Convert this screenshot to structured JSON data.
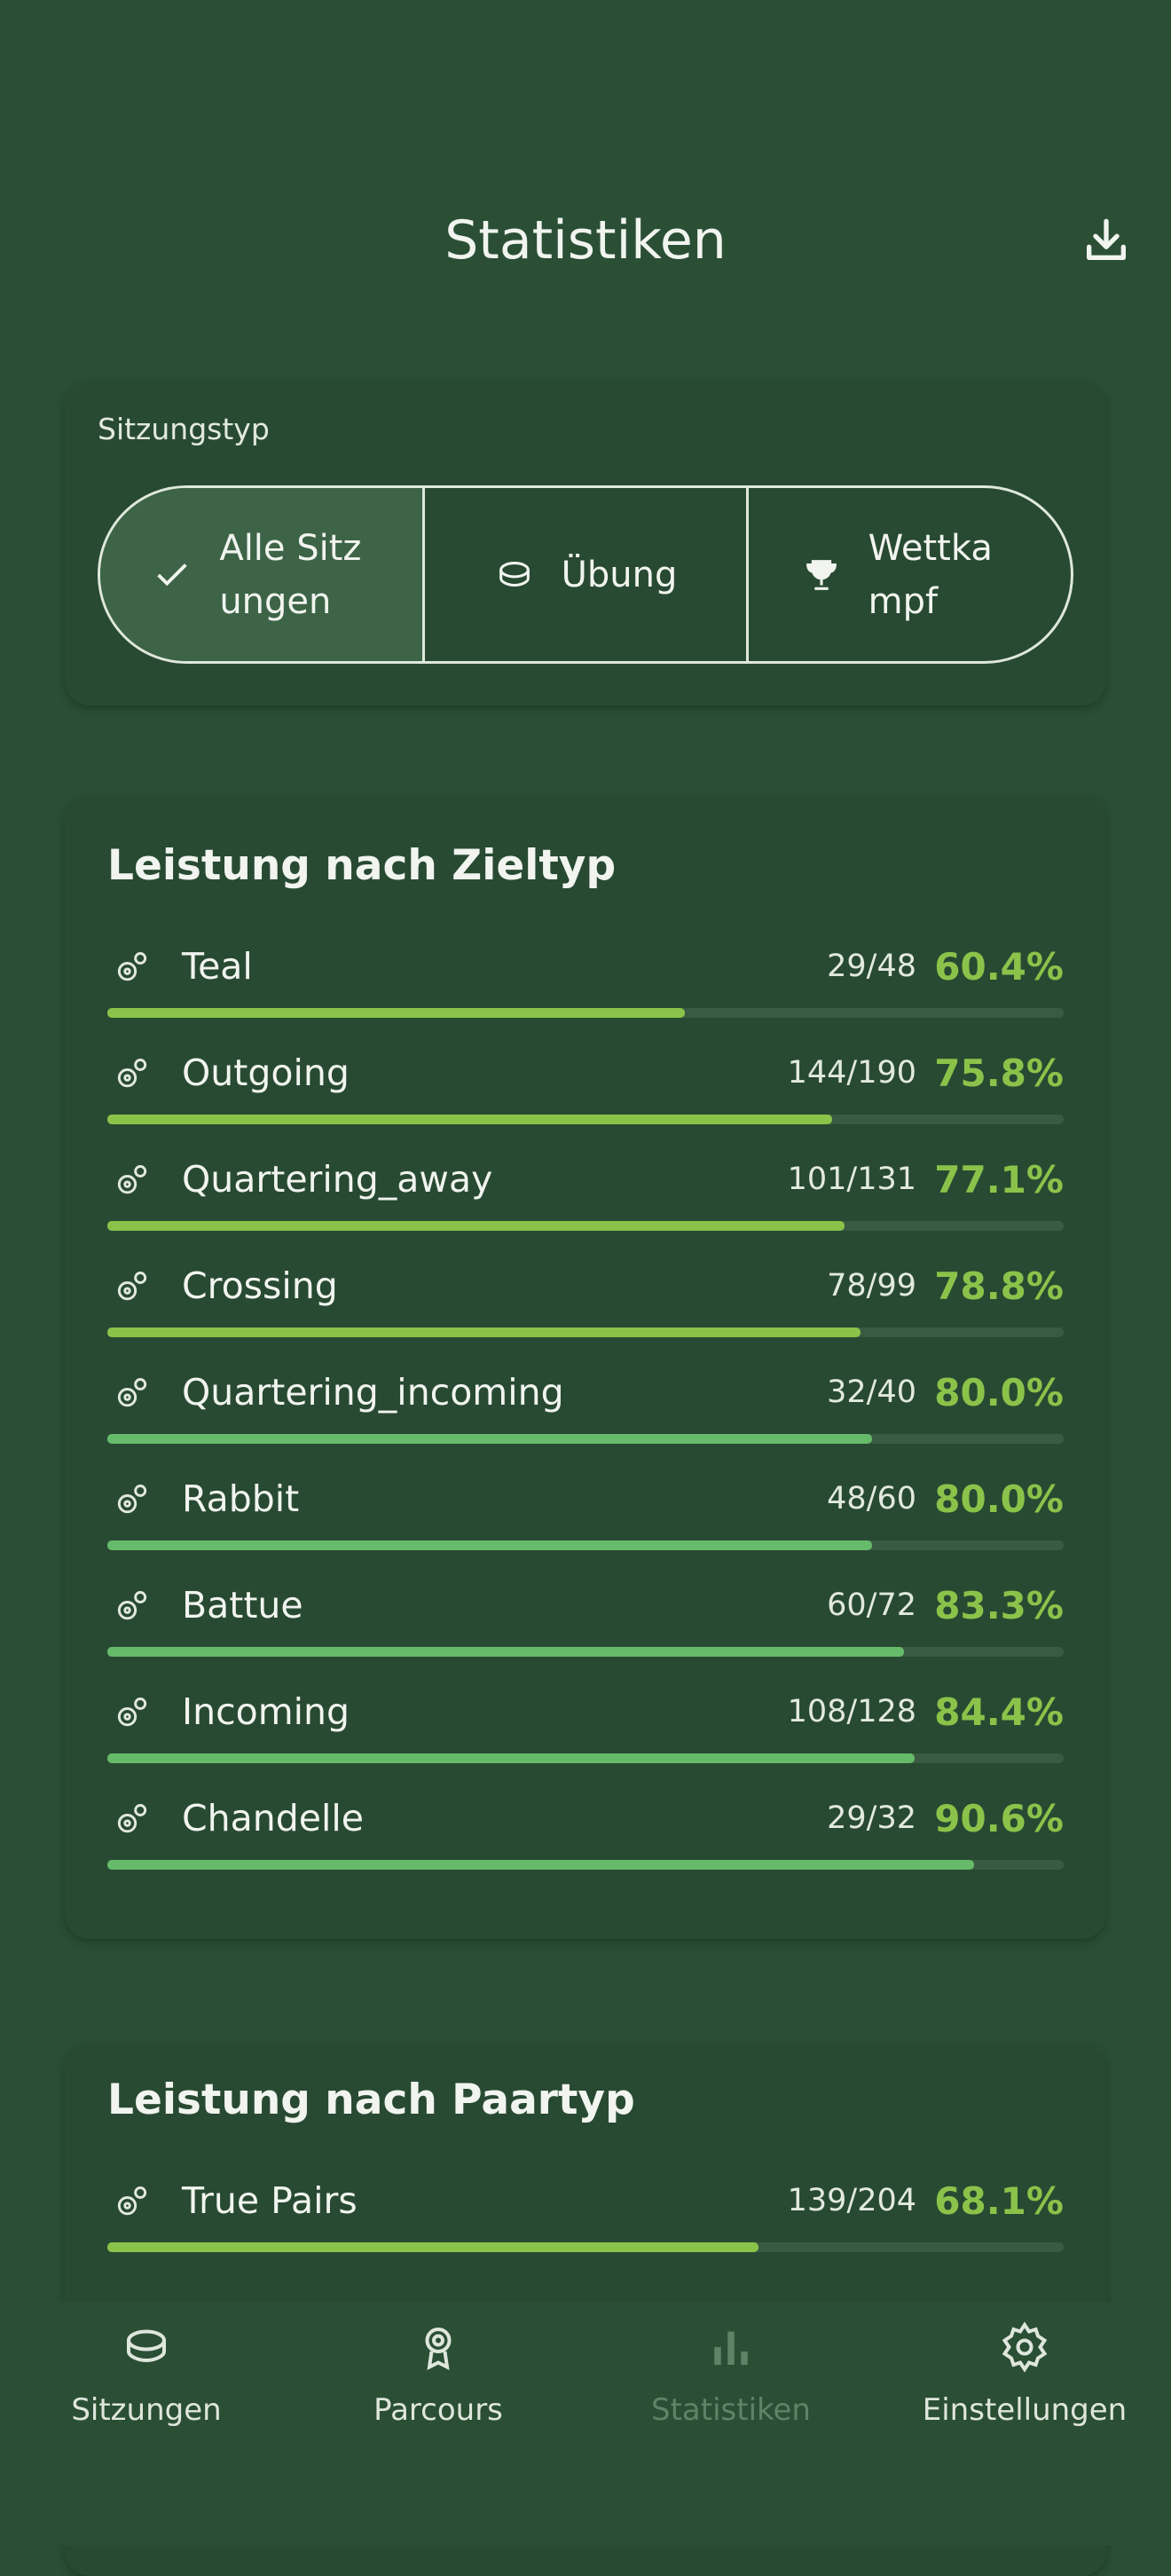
{
  "header": {
    "title": "Statistiken"
  },
  "session_filter": {
    "label": "Sitzungstyp",
    "options": [
      "Alle Sitzungen",
      "Übung",
      "Wettkampf"
    ],
    "selected": 0
  },
  "sections": [
    {
      "title": "Leistung nach Zieltyp",
      "rows": [
        {
          "label": "Teal",
          "score": "29/48",
          "rate": {
            "value": 60.4,
            "label": "60.4%"
          },
          "color": "#8bc34a"
        },
        {
          "label": "Outgoing",
          "score": "144/190",
          "rate": {
            "value": 75.8,
            "label": "75.8%"
          },
          "color": "#8bc34a"
        },
        {
          "label": "Quartering_away",
          "score": "101/131",
          "rate": {
            "value": 77.1,
            "label": "77.1%"
          },
          "color": "#8bc34a"
        },
        {
          "label": "Crossing",
          "score": "78/99",
          "rate": {
            "value": 78.8,
            "label": "78.8%"
          },
          "color": "#8bc34a"
        },
        {
          "label": "Quartering_incoming",
          "score": "32/40",
          "rate": {
            "value": 80.0,
            "label": "80.0%"
          },
          "color": "#66bb6a"
        },
        {
          "label": "Rabbit",
          "score": "48/60",
          "rate": {
            "value": 80.0,
            "label": "80.0%"
          },
          "color": "#66bb6a"
        },
        {
          "label": "Battue",
          "score": "60/72",
          "rate": {
            "value": 83.3,
            "label": "83.3%"
          },
          "color": "#66bb6a"
        },
        {
          "label": "Incoming",
          "score": "108/128",
          "rate": {
            "value": 84.4,
            "label": "84.4%"
          },
          "color": "#66bb6a"
        },
        {
          "label": "Chandelle",
          "score": "29/32",
          "rate": {
            "value": 90.6,
            "label": "90.6%"
          },
          "color": "#66bb6a"
        }
      ]
    },
    {
      "title": "Leistung nach Paartyp",
      "rows": [
        {
          "label": "True Pairs",
          "score": "139/204",
          "rate": {
            "value": 68.1,
            "label": "68.1%"
          },
          "color": "#8bc34a"
        }
      ]
    }
  ],
  "nav": {
    "items": [
      "Sitzungen",
      "Parcours",
      "Statistiken",
      "Einstellungen"
    ],
    "active": 2
  }
}
